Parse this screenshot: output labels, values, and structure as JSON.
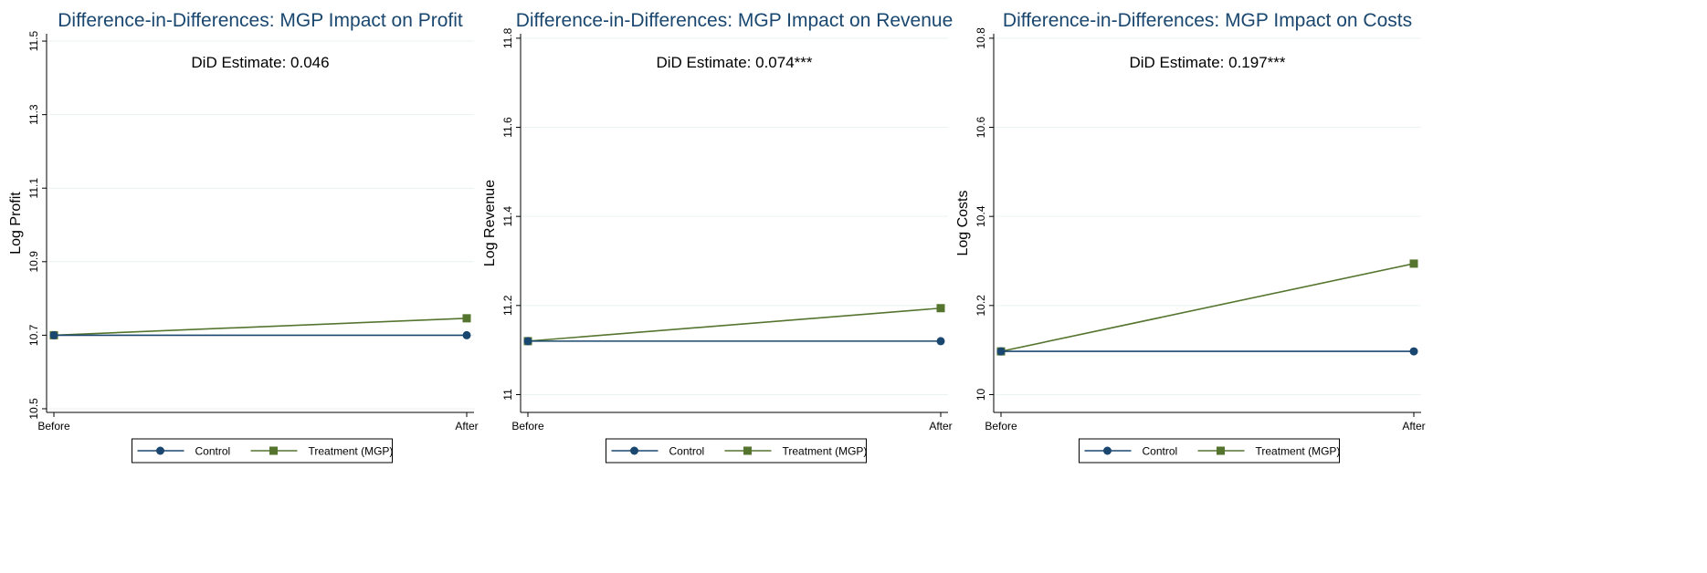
{
  "colors": {
    "control": "#1a476f",
    "treatment": "#55752f",
    "title": "#1a476f",
    "grid": "#eaf2f3",
    "axis": "#000000"
  },
  "chart_data": [
    {
      "type": "line",
      "title": "Difference-in-Differences: MGP Impact on Profit",
      "ylabel": "Log Profit",
      "xlabel": "",
      "annotation": "DiD Estimate: 0.046",
      "categories": [
        "Before",
        "After"
      ],
      "ylim": [
        10.49,
        11.52
      ],
      "yticks": [
        10.5,
        10.7,
        10.9,
        11.1,
        11.3,
        11.5
      ],
      "ytick_labels": [
        "10.5",
        "10.7",
        "10.9",
        "11.1",
        "11.3",
        "11.5"
      ],
      "grid": true,
      "legend_position": "bottom",
      "series": [
        {
          "name": "Control",
          "values": [
            10.7,
            10.7
          ],
          "marker": "circle"
        },
        {
          "name": "Treatment (MGP)",
          "values": [
            10.7,
            10.746
          ],
          "marker": "square"
        }
      ]
    },
    {
      "type": "line",
      "title": "Difference-in-Differences: MGP Impact on Revenue",
      "ylabel": "Log Revenue",
      "xlabel": "",
      "annotation": "DiD Estimate: 0.074***",
      "categories": [
        "Before",
        "After"
      ],
      "ylim": [
        10.96,
        11.81
      ],
      "yticks": [
        11.0,
        11.2,
        11.4,
        11.6,
        11.8
      ],
      "ytick_labels": [
        "11",
        "11.2",
        "11.4",
        "11.6",
        "11.8"
      ],
      "grid": true,
      "legend_position": "bottom",
      "series": [
        {
          "name": "Control",
          "values": [
            11.12,
            11.12
          ],
          "marker": "circle"
        },
        {
          "name": "Treatment (MGP)",
          "values": [
            11.12,
            11.194
          ],
          "marker": "square"
        }
      ]
    },
    {
      "type": "line",
      "title": "Difference-in-Differences: MGP Impact on Costs",
      "ylabel": "Log Costs",
      "xlabel": "",
      "annotation": "DiD Estimate: 0.197***",
      "categories": [
        "Before",
        "After"
      ],
      "ylim": [
        9.96,
        10.81
      ],
      "yticks": [
        10.0,
        10.2,
        10.4,
        10.6,
        10.8
      ],
      "ytick_labels": [
        "10",
        "10.2",
        "10.4",
        "10.6",
        "10.8"
      ],
      "grid": true,
      "legend_position": "bottom",
      "series": [
        {
          "name": "Control",
          "values": [
            10.097,
            10.097
          ],
          "marker": "circle"
        },
        {
          "name": "Treatment (MGP)",
          "values": [
            10.097,
            10.294
          ],
          "marker": "square"
        }
      ]
    }
  ]
}
